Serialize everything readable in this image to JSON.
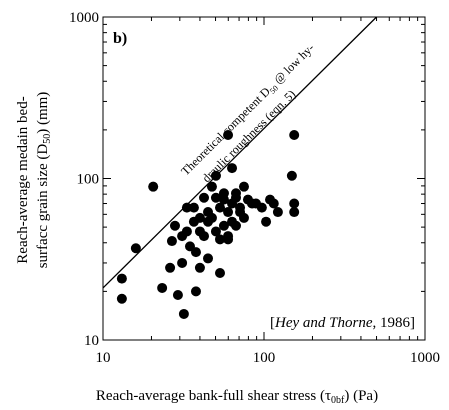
{
  "chart_data": {
    "type": "scatter",
    "panel_label": "b)",
    "x_label": [
      "Reach-average bank-full shear stress (",
      "τ",
      "0bf",
      ") (Pa)"
    ],
    "y_label": [
      [
        "Reach-average medain bed-"
      ],
      [
        "surfacc grain size (D",
        "50",
        ") (mm)"
      ]
    ],
    "annotation": [
      [
        "Theoretical competent D",
        "50",
        " @ low hy-"
      ],
      [
        "draulic roughness (eqn. 5)"
      ]
    ],
    "citation": [
      "[",
      "Hey and Thorne",
      ", 1986]"
    ],
    "log_x": true,
    "log_y": true,
    "xlim": [
      10,
      1000
    ],
    "ylim": [
      10,
      1000
    ],
    "xticks": [
      10,
      100,
      1000
    ],
    "yticks": [
      10,
      100,
      1000
    ],
    "color": "#000000",
    "line": {
      "x": [
        10,
        500
      ],
      "y": [
        21,
        1000
      ]
    },
    "x": [
      13.1,
      13.1,
      16,
      20.5,
      23.3,
      26.1,
      26.8,
      28,
      29.2,
      31,
      31.8,
      31,
      33.2,
      33.2,
      34.7,
      36.7,
      37.8,
      37.8,
      40,
      40,
      42.4,
      42.4,
      44.9,
      44.9,
      44.9,
      47.5,
      47.5,
      50.3,
      50.3,
      50.3,
      53.3,
      53.3,
      53.3,
      56.4,
      56.4,
      56.4,
      59.8,
      59.8,
      59.8,
      59.8,
      63.3,
      63.3,
      63.3,
      67,
      67,
      67,
      71,
      71,
      75.1,
      75.1,
      79.5,
      84.2,
      89.2,
      97,
      103,
      109,
      115,
      122,
      149,
      154,
      154,
      154,
      40,
      36.7
    ],
    "y": [
      24,
      18,
      37,
      89,
      21,
      28,
      41,
      51,
      19,
      44,
      14.5,
      30,
      47,
      66,
      38,
      54,
      35,
      20,
      47,
      57,
      44,
      76,
      54,
      62,
      32,
      89,
      57,
      104,
      76,
      47,
      66,
      42,
      26,
      74,
      51,
      81,
      62,
      42,
      186,
      44,
      70,
      116,
      54,
      76,
      81,
      51,
      66,
      62,
      89,
      57,
      74,
      70,
      70,
      66,
      54,
      74,
      70,
      62,
      104,
      186,
      70,
      62,
      28,
      66
    ]
  }
}
